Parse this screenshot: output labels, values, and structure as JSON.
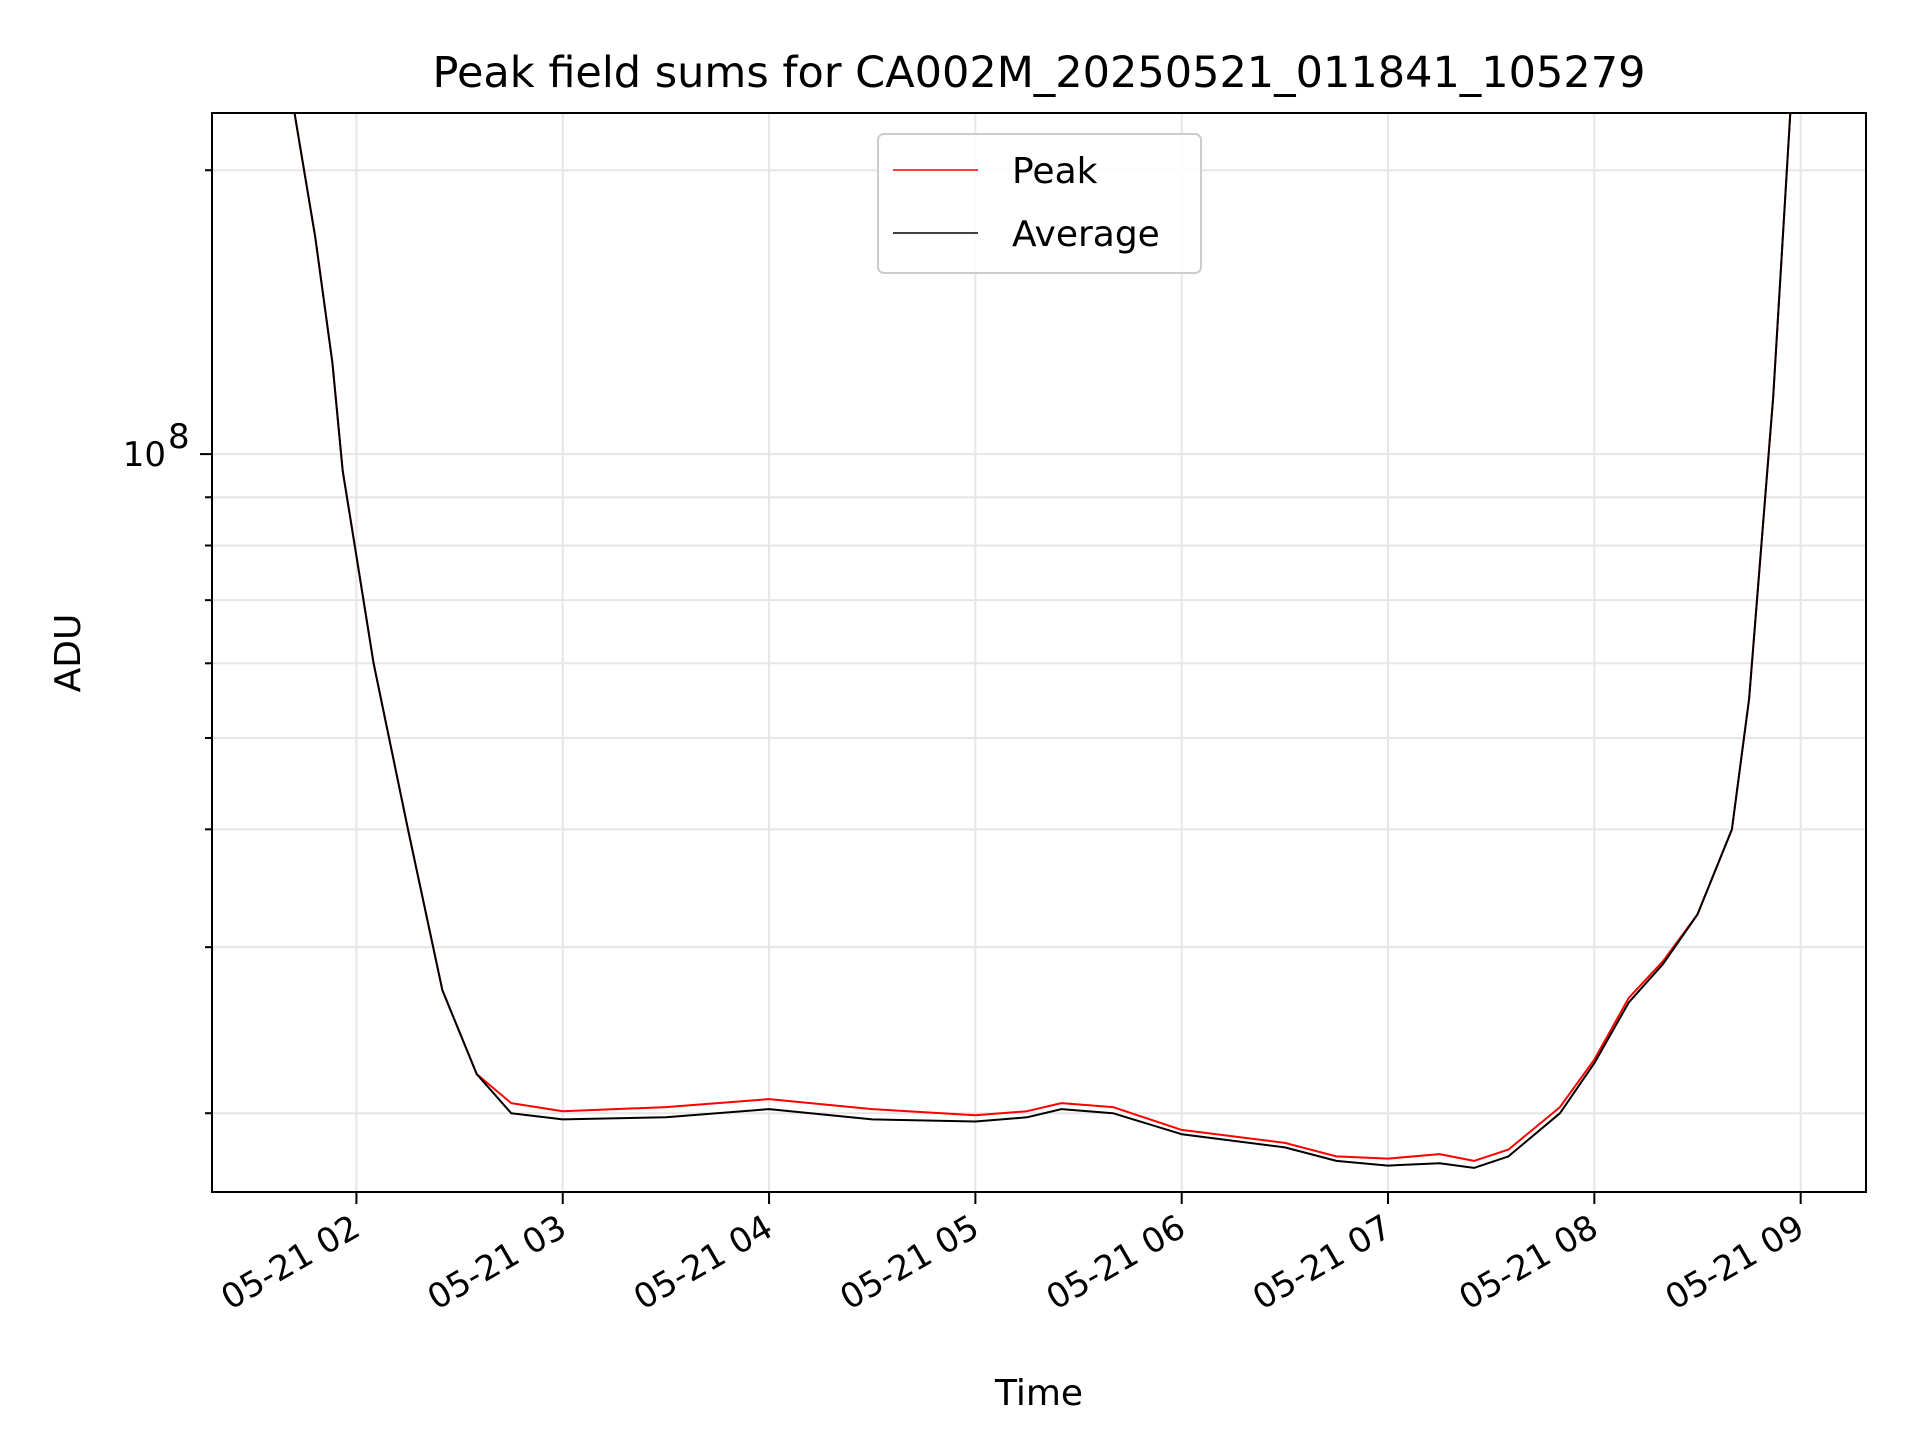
{
  "chart_data": {
    "type": "line",
    "title": "Peak field sums for CA002M_20250521_011841_105279",
    "xlabel": "Time",
    "ylabel": "ADU",
    "yscale": "log",
    "grid": true,
    "legend_position": "upper center",
    "xlim": [
      "2025-05-21 01:18",
      "2025-05-21 09:19"
    ],
    "ylim": [
      16500000,
      230000000
    ],
    "x_ticks": [
      "2025-05-21 02:00",
      "2025-05-21 03:00",
      "2025-05-21 04:00",
      "2025-05-21 05:00",
      "2025-05-21 06:00",
      "2025-05-21 07:00",
      "2025-05-21 08:00",
      "2025-05-21 09:00"
    ],
    "x_tick_labels": [
      "05-21 02",
      "05-21 03",
      "05-21 04",
      "05-21 05",
      "05-21 06",
      "05-21 07",
      "05-21 08",
      "05-21 09"
    ],
    "y_major_tick_value": 100000000,
    "y_major_tick_label_base": "10",
    "y_major_tick_label_exp": "8",
    "y_minor_ticks": [
      20000000,
      30000000,
      40000000,
      50000000,
      60000000,
      70000000,
      80000000,
      90000000,
      200000000
    ],
    "series": [
      {
        "name": "Peak",
        "color": "#ff0000",
        "x": [
          "2025-05-21 01:42",
          "2025-05-21 01:48",
          "2025-05-21 01:53",
          "2025-05-21 01:56",
          "2025-05-21 02:00",
          "2025-05-21 02:05",
          "2025-05-21 02:15",
          "2025-05-21 02:25",
          "2025-05-21 02:35",
          "2025-05-21 02:45",
          "2025-05-21 03:00",
          "2025-05-21 03:30",
          "2025-05-21 04:00",
          "2025-05-21 04:30",
          "2025-05-21 05:00",
          "2025-05-21 05:15",
          "2025-05-21 05:25",
          "2025-05-21 05:40",
          "2025-05-21 06:00",
          "2025-05-21 06:30",
          "2025-05-21 06:45",
          "2025-05-21 07:00",
          "2025-05-21 07:15",
          "2025-05-21 07:25",
          "2025-05-21 07:35",
          "2025-05-21 07:50",
          "2025-05-21 08:00",
          "2025-05-21 08:10",
          "2025-05-21 08:20",
          "2025-05-21 08:30",
          "2025-05-21 08:40",
          "2025-05-21 08:45",
          "2025-05-21 08:52",
          "2025-05-21 08:57"
        ],
        "y": [
          230000000,
          170000000,
          125000000,
          96000000,
          78000000,
          60000000,
          40000000,
          27000000,
          22000000,
          20500000,
          20100000,
          20300000,
          20700000,
          20200000,
          19900000,
          20100000,
          20500000,
          20300000,
          19200000,
          18600000,
          18000000,
          17900000,
          18100000,
          17800000,
          18300000,
          20300000,
          22800000,
          26500000,
          29000000,
          32500000,
          40000000,
          55000000,
          115000000,
          230000000
        ]
      },
      {
        "name": "Average",
        "color": "#000000",
        "x": [
          "2025-05-21 01:42",
          "2025-05-21 01:48",
          "2025-05-21 01:53",
          "2025-05-21 01:56",
          "2025-05-21 02:00",
          "2025-05-21 02:05",
          "2025-05-21 02:15",
          "2025-05-21 02:25",
          "2025-05-21 02:35",
          "2025-05-21 02:45",
          "2025-05-21 03:00",
          "2025-05-21 03:30",
          "2025-05-21 04:00",
          "2025-05-21 04:30",
          "2025-05-21 05:00",
          "2025-05-21 05:15",
          "2025-05-21 05:25",
          "2025-05-21 05:40",
          "2025-05-21 06:00",
          "2025-05-21 06:30",
          "2025-05-21 06:45",
          "2025-05-21 07:00",
          "2025-05-21 07:15",
          "2025-05-21 07:25",
          "2025-05-21 07:35",
          "2025-05-21 07:50",
          "2025-05-21 08:00",
          "2025-05-21 08:10",
          "2025-05-21 08:20",
          "2025-05-21 08:30",
          "2025-05-21 08:40",
          "2025-05-21 08:45",
          "2025-05-21 08:52",
          "2025-05-21 08:57"
        ],
        "y": [
          230000000,
          170000000,
          125000000,
          96000000,
          78000000,
          60000000,
          40000000,
          27000000,
          22000000,
          20000000,
          19700000,
          19800000,
          20200000,
          19700000,
          19600000,
          19800000,
          20200000,
          20000000,
          19000000,
          18400000,
          17800000,
          17600000,
          17700000,
          17500000,
          18000000,
          20000000,
          22600000,
          26200000,
          28800000,
          32500000,
          40000000,
          55000000,
          115000000,
          230000000
        ]
      }
    ]
  }
}
